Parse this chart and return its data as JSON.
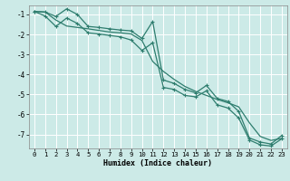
{
  "xlabel": "Humidex (Indice chaleur)",
  "background_color": "#cceae7",
  "grid_color": "#ffffff",
  "line_color": "#2e7d6e",
  "xlim": [
    -0.5,
    23.5
  ],
  "ylim": [
    -7.7,
    -0.55
  ],
  "xticks": [
    0,
    1,
    2,
    3,
    4,
    5,
    6,
    7,
    8,
    9,
    10,
    11,
    12,
    13,
    14,
    15,
    16,
    17,
    18,
    19,
    20,
    21,
    22,
    23
  ],
  "yticks": [
    -1,
    -2,
    -3,
    -4,
    -5,
    -6,
    -7
  ],
  "x": [
    0,
    1,
    2,
    3,
    4,
    5,
    6,
    7,
    8,
    9,
    10,
    11,
    12,
    13,
    14,
    15,
    16,
    17,
    18,
    19,
    20,
    21,
    22,
    23
  ],
  "line_mid": [
    -0.85,
    -0.88,
    -1.28,
    -1.58,
    -1.65,
    -1.72,
    -1.8,
    -1.88,
    -1.92,
    -1.98,
    -2.3,
    -3.35,
    -3.85,
    -4.25,
    -4.6,
    -4.85,
    -5.05,
    -5.25,
    -5.42,
    -5.62,
    -6.42,
    -7.1,
    -7.3,
    -7.2
  ],
  "line_top": [
    -0.85,
    -0.88,
    -1.1,
    -0.72,
    -1.0,
    -1.6,
    -1.65,
    -1.72,
    -1.78,
    -1.82,
    -2.2,
    -1.35,
    -4.28,
    -4.45,
    -4.75,
    -4.92,
    -4.55,
    -5.2,
    -5.35,
    -5.85,
    -7.18,
    -7.38,
    -7.48,
    -7.05
  ],
  "line_bot": [
    -0.85,
    -1.08,
    -1.6,
    -1.18,
    -1.45,
    -1.92,
    -1.98,
    -2.05,
    -2.12,
    -2.28,
    -2.8,
    -2.42,
    -4.65,
    -4.75,
    -5.05,
    -5.12,
    -4.82,
    -5.52,
    -5.68,
    -6.18,
    -7.28,
    -7.52,
    -7.58,
    -7.22
  ]
}
